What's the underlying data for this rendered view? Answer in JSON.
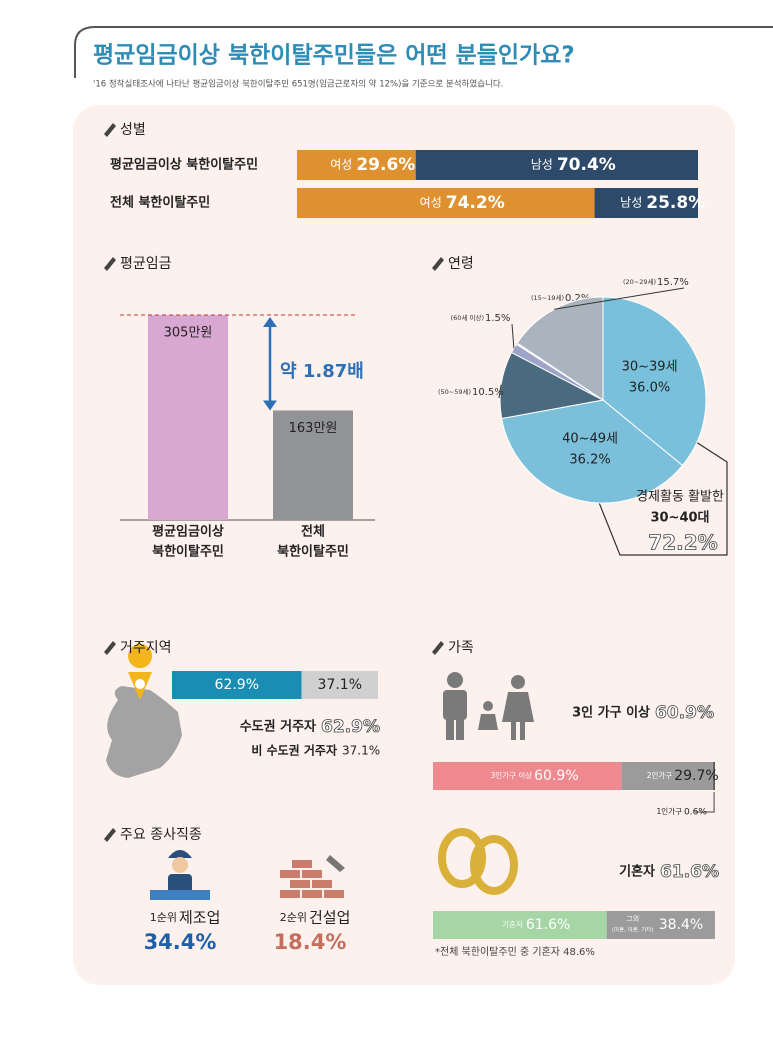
{
  "header": {
    "title": "평균임금이상 북한이탈주민들은 어떤 분들인가요?",
    "subtitle": "'16 정착실태조사에 나타난  평균임금이상 북한이탈주민  651명(임금근로자의 약 12%)을 기준으로 분석하였습니다."
  },
  "gender": {
    "title": "성별",
    "rows": [
      {
        "label": "평균임금이상 북한이탈주민",
        "segments": [
          {
            "name": "여성",
            "value": 29.6,
            "value_label": "29.6%",
            "color": "#e0912f"
          },
          {
            "name": "남성",
            "value": 70.4,
            "value_label": "70.4%",
            "color": "#2d4a6b"
          }
        ]
      },
      {
        "label": "전체 북한이탈주민",
        "segments": [
          {
            "name": "여성",
            "value": 74.2,
            "value_label": "74.2%",
            "color": "#e0912f"
          },
          {
            "name": "남성",
            "value": 25.8,
            "value_label": "25.8%",
            "color": "#2d4a6b"
          }
        ]
      }
    ]
  },
  "wage": {
    "title": "평균임금",
    "ratio_label": "약 1.87배",
    "bars": [
      {
        "label_lines": [
          "평균임금이상",
          "북한이탈주민"
        ],
        "value": 305,
        "value_label": "305만원",
        "color": "#d9a8d2"
      },
      {
        "label_lines": [
          "전체",
          "북한이탈주민"
        ],
        "value": 163,
        "value_label": "163만원",
        "color": "#929396"
      }
    ]
  },
  "age": {
    "title": "연령",
    "slices": [
      {
        "name": "30~39세",
        "value": 36.0,
        "value_label": "36.0%",
        "color": "#79c0dd",
        "label_position": "inside"
      },
      {
        "name": "40~49세",
        "value": 36.2,
        "value_label": "36.2%",
        "color": "#7cbfdb",
        "label_position": "inside"
      },
      {
        "name": "(50~59세)",
        "value": 10.5,
        "value_label": "10.5%",
        "color": "#4a6a80",
        "label_position": "outside"
      },
      {
        "name": "(60세 이상)",
        "value": 1.5,
        "value_label": "1.5%",
        "color": "#9ea3c8",
        "label_position": "outside"
      },
      {
        "name": "(15~19세)",
        "value": 0.2,
        "value_label": "0.2%",
        "color": "#e8e8f0",
        "label_position": "outside"
      },
      {
        "name": "(20~29세)",
        "value": 15.7,
        "value_label": "15.7%",
        "color": "#aab4be",
        "label_position": "outside"
      }
    ],
    "annotation": {
      "lines": [
        "경제활동 활발한",
        "30~40대"
      ],
      "value_label": "72.2%"
    }
  },
  "region": {
    "title": "거주지역",
    "segments": [
      {
        "name": "수도권 거주자",
        "value": 62.9,
        "value_label": "62.9%",
        "color": "#1a8db5"
      },
      {
        "name": "비 수도권 거주자",
        "value": 37.1,
        "value_label": "37.1%",
        "color": "#d0d0d0"
      }
    ]
  },
  "jobs": {
    "title": "주요 종사직종",
    "items": [
      {
        "rank": "1순위",
        "name": "제조업",
        "value_label": "34.4%",
        "color": "#1e5fa8"
      },
      {
        "rank": "2순위",
        "name": "건설업",
        "value_label": "18.4%",
        "color": "#c36f5c"
      }
    ]
  },
  "family": {
    "title": "가족",
    "headline": "3인  가구 이상",
    "household": [
      {
        "name": "3인가구 이상",
        "value": 60.9,
        "value_label": "60.9%",
        "color": "#ee8a8f"
      },
      {
        "name": "2인가구",
        "value": 29.7,
        "value_label": "29.7%",
        "color": "#9b9b9b"
      },
      {
        "name": "1인가구",
        "value": 0.6,
        "value_label": "0.6%",
        "color": "#555555"
      }
    ],
    "marriage": {
      "headline": "기혼자",
      "segments": [
        {
          "name": "기혼자",
          "value": 61.6,
          "value_label": "61.6%",
          "color": "#a6d6a6"
        },
        {
          "name": "그외",
          "sub": "(미혼, 이혼, 기타)",
          "value": 38.4,
          "value_label": "38.4%",
          "color": "#9b9b9b"
        }
      ],
      "note": "*전체 북한이탈주민 중 기혼자 48.6%"
    }
  }
}
